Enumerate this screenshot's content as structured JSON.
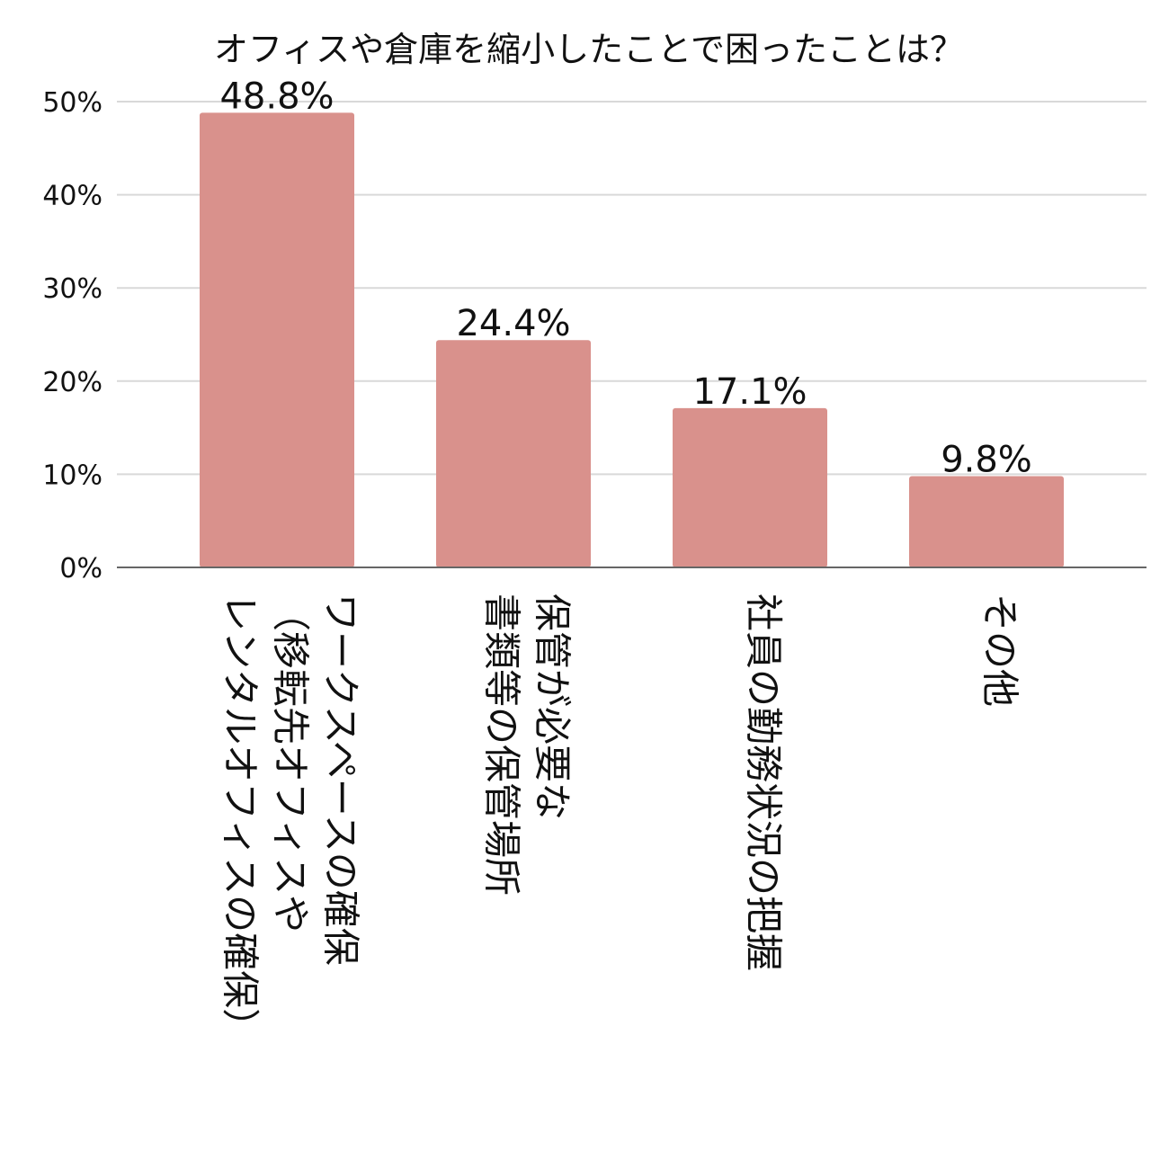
{
  "chart_data": {
    "type": "bar",
    "title": "オフィスや倉庫を縮小したことで困ったことは？",
    "categories": [
      [
        "ワークスペースの確保",
        "（移転先オフィスや",
        "レンタルオフィスの確保）"
      ],
      [
        "保管が必要な",
        "書類等の保管場所"
      ],
      [
        "社員の勤務状況の把握"
      ],
      [
        "その他"
      ]
    ],
    "values": [
      48.8,
      24.4,
      17.1,
      9.8
    ],
    "value_labels": [
      "48.8%",
      "24.4%",
      "17.1%",
      "9.8%"
    ],
    "ylim": [
      0,
      50
    ],
    "yticks": [
      0,
      10,
      20,
      30,
      40,
      50
    ],
    "ytick_labels": [
      "0%",
      "10%",
      "20%",
      "30%",
      "40%",
      "50%"
    ],
    "xlabel": "",
    "ylabel": "",
    "grid": true,
    "colors": {
      "bar": "#d9918c",
      "grid": "#d9d9d9",
      "axis": "#666666",
      "text": "#111111"
    }
  }
}
